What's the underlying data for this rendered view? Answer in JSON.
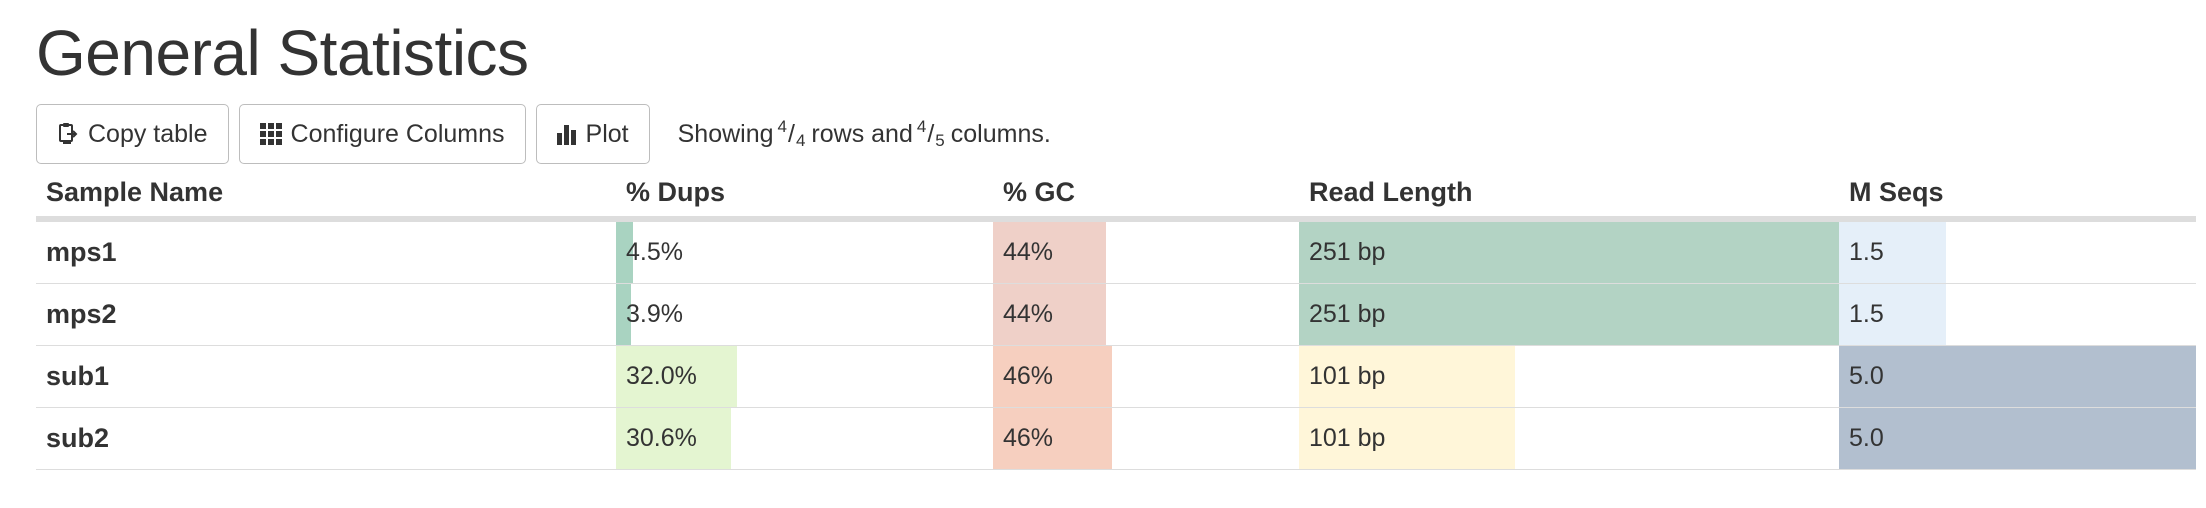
{
  "page": {
    "title": "General Statistics"
  },
  "toolbar": {
    "copy_label": "Copy table",
    "copy_icon": "clipboard-copy-icon",
    "configure_label": "Configure Columns",
    "configure_icon": "grid-icon",
    "plot_label": "Plot",
    "plot_icon": "bar-chart-icon",
    "showing": {
      "prefix": "Showing",
      "rows_shown": "4",
      "rows_total": "4",
      "middle": "rows and",
      "cols_shown": "4",
      "cols_total": "5",
      "suffix": "columns."
    }
  },
  "table": {
    "headers": [
      "Sample Name",
      "% Dups",
      "% GC",
      "Read Length",
      "M Seqs"
    ],
    "rows": [
      {
        "sample": "mps1",
        "dups": "4.5%",
        "gc": "44%",
        "read_length": "251 bp",
        "m_seqs": "1.5"
      },
      {
        "sample": "mps2",
        "dups": "3.9%",
        "gc": "44%",
        "read_length": "251 bp",
        "m_seqs": "1.5"
      },
      {
        "sample": "sub1",
        "dups": "32.0%",
        "gc": "46%",
        "read_length": "101 bp",
        "m_seqs": "5.0"
      },
      {
        "sample": "sub2",
        "dups": "30.6%",
        "gc": "46%",
        "read_length": "101 bp",
        "m_seqs": "5.0"
      }
    ],
    "bar_fractions": [
      {
        "dups": 0.045,
        "gc": 0.37,
        "read_length": 1.0,
        "m_seqs": 0.3
      },
      {
        "dups": 0.039,
        "gc": 0.37,
        "read_length": 1.0,
        "m_seqs": 0.3
      },
      {
        "dups": 0.32,
        "gc": 0.39,
        "read_length": 0.4,
        "m_seqs": 1.0
      },
      {
        "dups": 0.306,
        "gc": 0.39,
        "read_length": 0.4,
        "m_seqs": 1.0
      }
    ],
    "bar_colors": [
      {
        "dups": "#a9d3c1",
        "gc": "#efd0c8",
        "read_length": "#b3d3c4",
        "m_seqs": "#e5eff9"
      },
      {
        "dups": "#a9d3c1",
        "gc": "#efd0c8",
        "read_length": "#b3d3c4",
        "m_seqs": "#e5eff9"
      },
      {
        "dups": "#e4f5d1",
        "gc": "#f6cfbf",
        "read_length": "#fff6d9",
        "m_seqs": "#b2bfcf"
      },
      {
        "dups": "#e4f5d1",
        "gc": "#f6cfbf",
        "read_length": "#fff6d9",
        "m_seqs": "#b2bfcf"
      }
    ]
  }
}
